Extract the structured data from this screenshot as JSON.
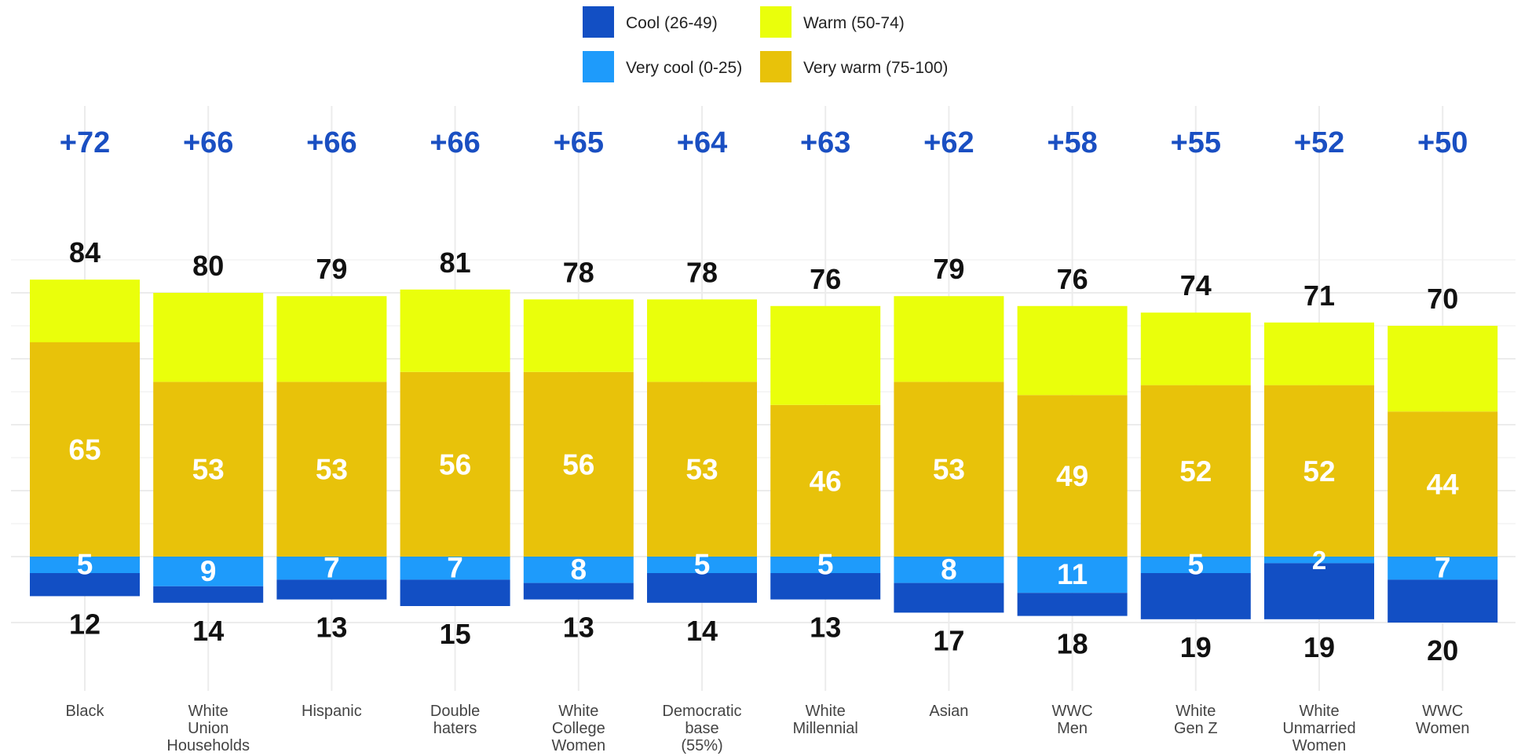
{
  "chart_data": {
    "type": "bar",
    "stacked": true,
    "diverging": true,
    "title": "",
    "xlabel": "",
    "ylabel": "",
    "ylim": [
      -22,
      94
    ],
    "grid": true,
    "legend_position": "top",
    "categories": [
      [
        "Black"
      ],
      [
        "White",
        "Union",
        "Households"
      ],
      [
        "Hispanic"
      ],
      [
        "Double",
        "haters"
      ],
      [
        "White",
        "College",
        "Women"
      ],
      [
        "Democratic",
        "base",
        "(55%)"
      ],
      [
        "White",
        "Millennial"
      ],
      [
        "Asian"
      ],
      [
        "WWC",
        "Men"
      ],
      [
        "White",
        "Gen Z"
      ],
      [
        "White",
        "Unmarried",
        "Women"
      ],
      [
        "WWC",
        "Women"
      ]
    ],
    "net_labels": [
      "+72",
      "+66",
      "+66",
      "+66",
      "+65",
      "+64",
      "+63",
      "+62",
      "+58",
      "+55",
      "+52",
      "+50"
    ],
    "warm_total": [
      84,
      80,
      79,
      81,
      78,
      78,
      76,
      79,
      76,
      74,
      71,
      70
    ],
    "cool_total": [
      12,
      14,
      13,
      15,
      13,
      14,
      13,
      17,
      18,
      19,
      19,
      20
    ],
    "series": [
      {
        "name": "Very warm (75-100)",
        "color": "#e8c20a",
        "values": [
          65,
          53,
          53,
          56,
          56,
          53,
          46,
          53,
          49,
          52,
          52,
          44
        ],
        "direction": "positive"
      },
      {
        "name": "Warm (50-74)",
        "color": "#eaff0b",
        "values": [
          19,
          27,
          26,
          25,
          22,
          25,
          30,
          26,
          27,
          22,
          19,
          26
        ],
        "direction": "positive"
      },
      {
        "name": "Very cool (0-25)",
        "color": "#1e9bfb",
        "values": [
          5,
          9,
          7,
          7,
          8,
          5,
          5,
          8,
          11,
          5,
          2,
          7
        ],
        "direction": "negative"
      },
      {
        "name": "Cool (26-49)",
        "color": "#124fc4",
        "values": [
          7,
          5,
          6,
          8,
          5,
          9,
          8,
          9,
          7,
          14,
          17,
          13
        ],
        "direction": "negative"
      }
    ],
    "legend": [
      {
        "label": "Cool (26-49)",
        "color": "#124fc4"
      },
      {
        "label": "Warm (50-74)",
        "color": "#eaff0b"
      },
      {
        "label": "Very cool (0-25)",
        "color": "#1e9bfb"
      },
      {
        "label": "Very warm (75-100)",
        "color": "#e8c20a"
      }
    ],
    "colors": {
      "net_label": "#1a4fc2",
      "total_label": "#111111",
      "inside_label": "#ffffff",
      "grid": "#ececec"
    }
  }
}
